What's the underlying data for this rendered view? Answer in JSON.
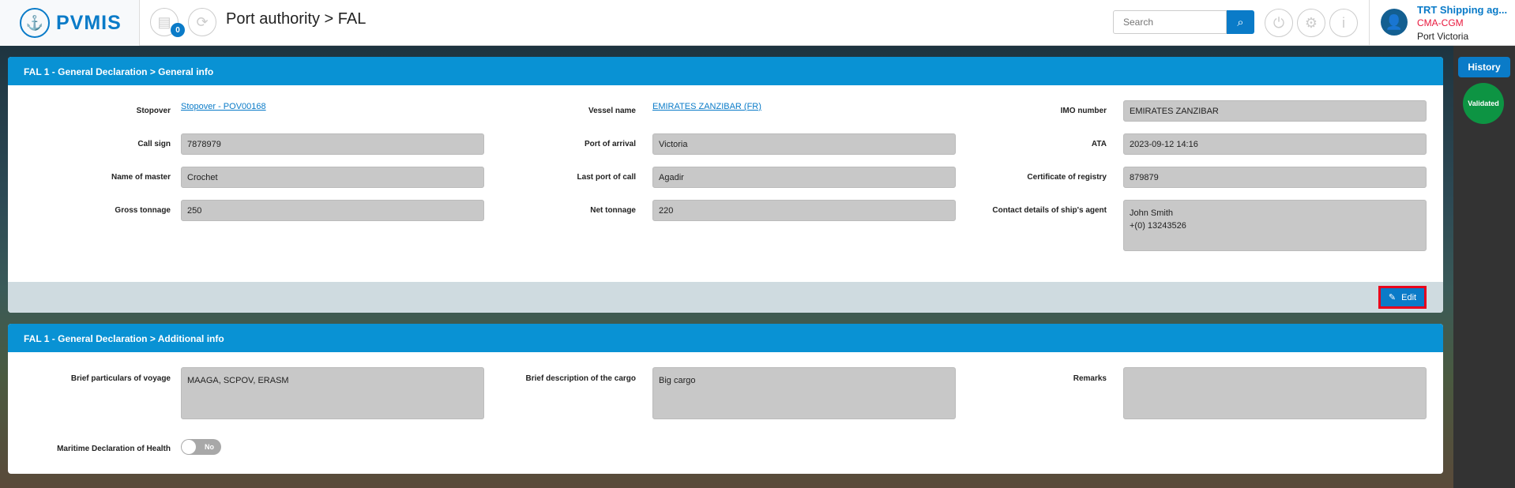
{
  "app": {
    "logo": "PVMIS",
    "notification_count": "0",
    "breadcrumb": "Port authority > FAL"
  },
  "search": {
    "placeholder": "Search"
  },
  "user": {
    "name": "TRT Shipping ag...",
    "company": "CMA-CGM",
    "port": "Port Victoria"
  },
  "sidebar": {
    "history_label": "History",
    "status": "Validated"
  },
  "general": {
    "title": "FAL 1 - General Declaration > General info",
    "stopover_label": "Stopover",
    "stopover": "Stopover - POV00168",
    "vessel_label": "Vessel name",
    "vessel": "EMIRATES ZANZIBAR (FR)",
    "imo_label": "IMO number",
    "imo": "EMIRATES ZANZIBAR",
    "callsign_label": "Call sign",
    "callsign": "7878979",
    "arrival_label": "Port of arrival",
    "arrival": "Victoria",
    "ata_label": "ATA",
    "ata": "2023-09-12 14:16",
    "master_label": "Name of master",
    "master": "Crochet",
    "lastport_label": "Last port of call",
    "lastport": "Agadir",
    "registry_label": "Certificate of registry",
    "registry": "879879",
    "gross_label": "Gross tonnage",
    "gross": "250",
    "net_label": "Net tonnage",
    "net": "220",
    "agent_label": "Contact details of ship's agent",
    "agent_line1": "John Smith",
    "agent_line2": "+(0) 13243526",
    "edit_label": "Edit"
  },
  "additional": {
    "title": "FAL 1 - General Declaration > Additional info",
    "voyage_label": "Brief particulars of voyage",
    "voyage": "MAAGA, SCPOV, ERASM",
    "cargo_label": "Brief description of the cargo",
    "cargo": "Big cargo",
    "remarks_label": "Remarks",
    "remarks": "",
    "health_label": "Maritime Declaration of Health",
    "health_value": "No"
  },
  "colors": {
    "primary": "#0a7bc8",
    "header": "#0992d4",
    "validated": "#0d9443",
    "highlight": "#e8001c"
  }
}
